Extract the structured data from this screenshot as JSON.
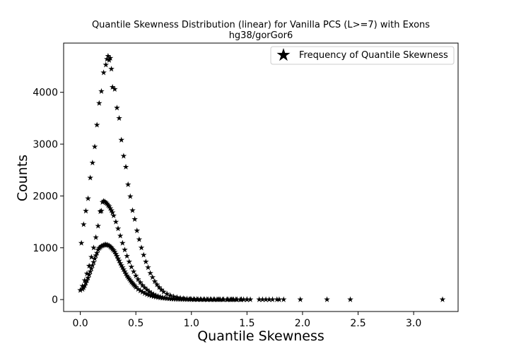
{
  "chart_data": {
    "type": "scatter",
    "title": "Quantile Skewness Distribution (linear) for Vanilla PCS (L>=7) with Exons",
    "subtitle": "hg38/gorGor6",
    "xlabel": "Quantile Skewness",
    "ylabel": "Counts",
    "xlim": [
      -0.15,
      3.4
    ],
    "ylim": [
      -230,
      4950
    ],
    "xticks": [
      "0.0",
      "0.5",
      "1.0",
      "1.5",
      "2.0",
      "2.5",
      "3.0"
    ],
    "xtick_values": [
      0,
      0.5,
      1.0,
      1.5,
      2.0,
      2.5,
      3.0
    ],
    "yticks": [
      "0",
      "1000",
      "2000",
      "3000",
      "4000"
    ],
    "ytick_values": [
      0,
      1000,
      2000,
      3000,
      4000
    ],
    "grid": false,
    "legend_position": "top-right",
    "marker": "star",
    "color": "#000000",
    "series": [
      {
        "name": "Frequency of Quantile Skewness",
        "x": [
          0.02,
          0.03,
          0.04,
          0.05,
          0.06,
          0.07,
          0.08,
          0.09,
          0.1,
          0.11,
          0.12,
          0.13,
          0.14,
          0.15,
          0.16,
          0.17,
          0.18,
          0.19,
          0.2,
          0.21,
          0.22,
          0.23,
          0.24,
          0.25,
          0.26,
          0.27,
          0.28,
          0.29,
          0.3,
          0.31,
          0.32,
          0.33,
          0.34,
          0.35,
          0.36,
          0.37,
          0.38,
          0.39,
          0.4,
          0.41,
          0.42,
          0.43,
          0.44,
          0.45,
          0.46,
          0.47,
          0.48,
          0.49,
          0.5,
          0.52,
          0.54,
          0.56,
          0.58,
          0.6,
          0.62,
          0.64,
          0.66,
          0.68,
          0.7,
          0.72,
          0.74,
          0.76,
          0.78,
          0.8,
          0.82,
          0.84,
          0.86,
          0.88,
          0.9,
          0.92,
          0.94,
          0.96,
          0.98,
          1.0,
          1.03,
          1.06,
          1.09,
          1.12,
          1.15,
          1.18,
          1.21,
          1.25,
          1.29,
          1.33,
          1.37,
          1.41,
          1.45,
          1.5
        ],
        "y": [
          200,
          230,
          270,
          320,
          370,
          420,
          480,
          540,
          600,
          660,
          720,
          790,
          850,
          900,
          960,
          990,
          1010,
          1030,
          1040,
          1050,
          1060,
          1060,
          1055,
          1050,
          1040,
          1020,
          1000,
          975,
          950,
          920,
          880,
          840,
          790,
          750,
          700,
          660,
          620,
          580,
          540,
          500,
          460,
          430,
          400,
          370,
          340,
          315,
          290,
          265,
          240,
          200,
          170,
          145,
          120,
          100,
          85,
          72,
          60,
          50,
          42,
          35,
          30,
          25,
          21,
          18,
          15,
          13,
          11,
          9,
          8,
          7,
          6,
          5,
          4,
          4,
          3,
          3,
          2,
          2,
          2,
          1,
          1,
          1,
          1,
          1,
          1,
          1,
          1,
          1
        ]
      },
      {
        "name": "",
        "x": [
          0.0,
          0.02,
          0.04,
          0.06,
          0.08,
          0.1,
          0.12,
          0.14,
          0.16,
          0.18,
          0.19,
          0.2,
          0.21,
          0.22,
          0.23,
          0.24,
          0.25,
          0.26,
          0.27,
          0.28,
          0.29,
          0.3,
          0.32,
          0.34,
          0.36,
          0.38,
          0.4,
          0.42,
          0.44,
          0.46,
          0.48,
          0.5,
          0.52,
          0.54,
          0.56,
          0.58,
          0.6,
          0.62,
          0.64,
          0.66,
          0.68,
          0.7,
          0.72,
          0.74,
          0.76,
          0.78,
          0.8,
          0.82,
          0.84,
          0.86,
          0.88,
          0.9,
          0.92,
          0.94,
          0.96,
          0.98,
          1.0,
          1.02,
          1.05,
          1.08,
          1.11,
          1.14,
          1.17,
          1.2,
          1.24,
          1.28,
          1.32,
          1.36,
          1.4,
          1.45,
          1.5
        ],
        "y": [
          180,
          260,
          370,
          500,
          650,
          820,
          1000,
          1200,
          1420,
          1700,
          1710,
          1880,
          1900,
          1890,
          1870,
          1850,
          1820,
          1800,
          1760,
          1720,
          1680,
          1620,
          1500,
          1370,
          1230,
          1090,
          960,
          840,
          730,
          630,
          540,
          460,
          390,
          330,
          275,
          230,
          190,
          155,
          125,
          100,
          80,
          65,
          52,
          42,
          34,
          27,
          22,
          17,
          14,
          11,
          9,
          7,
          6,
          5,
          4,
          3,
          3,
          2,
          2,
          2,
          1,
          1,
          1,
          1,
          1,
          1,
          1,
          1,
          1,
          1,
          1
        ]
      },
      {
        "name": "",
        "x": [
          0.01,
          0.03,
          0.05,
          0.07,
          0.09,
          0.11,
          0.13,
          0.15,
          0.17,
          0.19,
          0.21,
          0.23,
          0.24,
          0.25,
          0.26,
          0.27,
          0.28,
          0.29,
          0.31,
          0.33,
          0.35,
          0.37,
          0.39,
          0.41,
          0.43,
          0.45,
          0.47,
          0.49,
          0.51,
          0.53,
          0.55,
          0.57,
          0.59,
          0.61,
          0.63,
          0.65,
          0.67,
          0.69,
          0.71,
          0.73,
          0.75,
          0.78,
          0.81,
          0.84,
          0.87,
          0.9,
          0.93,
          0.96,
          0.99,
          1.02,
          1.05,
          1.08,
          1.11,
          1.14,
          1.17,
          1.2,
          1.23,
          1.26,
          1.29,
          1.32,
          1.35,
          1.38,
          1.41,
          1.44,
          1.47,
          1.5,
          1.53,
          1.61,
          1.64,
          1.67,
          1.7,
          1.73,
          1.77,
          1.79,
          1.83,
          1.98,
          2.22,
          2.43,
          3.26
        ],
        "y": [
          1090,
          1450,
          1710,
          1950,
          2350,
          2640,
          2950,
          3370,
          3790,
          4020,
          4380,
          4530,
          4640,
          4700,
          4620,
          4660,
          4450,
          4100,
          4060,
          3700,
          3500,
          3080,
          2770,
          2560,
          2220,
          1990,
          1720,
          1550,
          1330,
          1160,
          1000,
          860,
          730,
          620,
          510,
          430,
          350,
          290,
          235,
          190,
          150,
          110,
          80,
          58,
          42,
          30,
          22,
          16,
          12,
          9,
          7,
          5,
          4,
          4,
          3,
          3,
          2,
          2,
          2,
          1,
          1,
          1,
          1,
          1,
          1,
          1,
          1,
          1,
          1,
          1,
          1,
          1,
          1,
          1,
          1,
          1,
          1,
          1,
          1
        ]
      }
    ]
  }
}
